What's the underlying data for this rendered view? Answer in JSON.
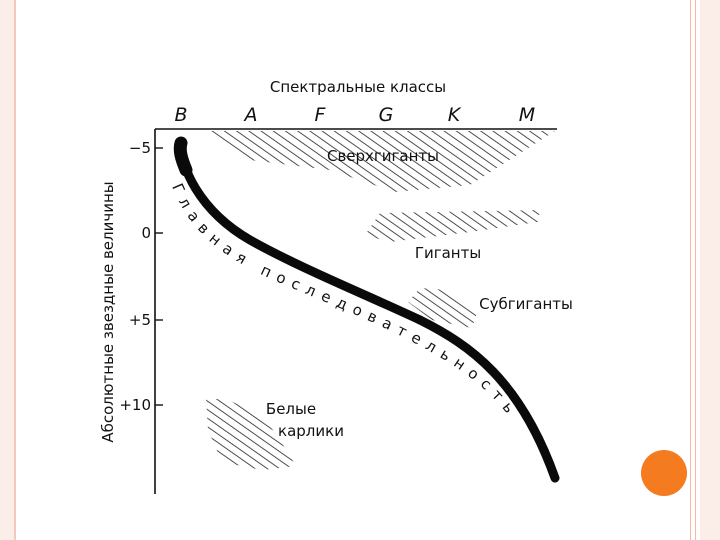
{
  "diagram": {
    "title": "Спектральные классы",
    "y_axis_label": "Абсолютные звездные величины",
    "spectral_classes": [
      "B",
      "A",
      "F",
      "G",
      "K",
      "M"
    ],
    "magnitude_ticks": [
      "−5",
      "0",
      "+5",
      "+10"
    ],
    "regions": {
      "supergiants": "Сверхгиганты",
      "giants": "Гиганты",
      "subgiants": "Субгиганты",
      "white_dwarfs_line1": "Белые",
      "white_dwarfs_line2": "карлики"
    },
    "main_sequence_label": "Главная последовательность"
  }
}
